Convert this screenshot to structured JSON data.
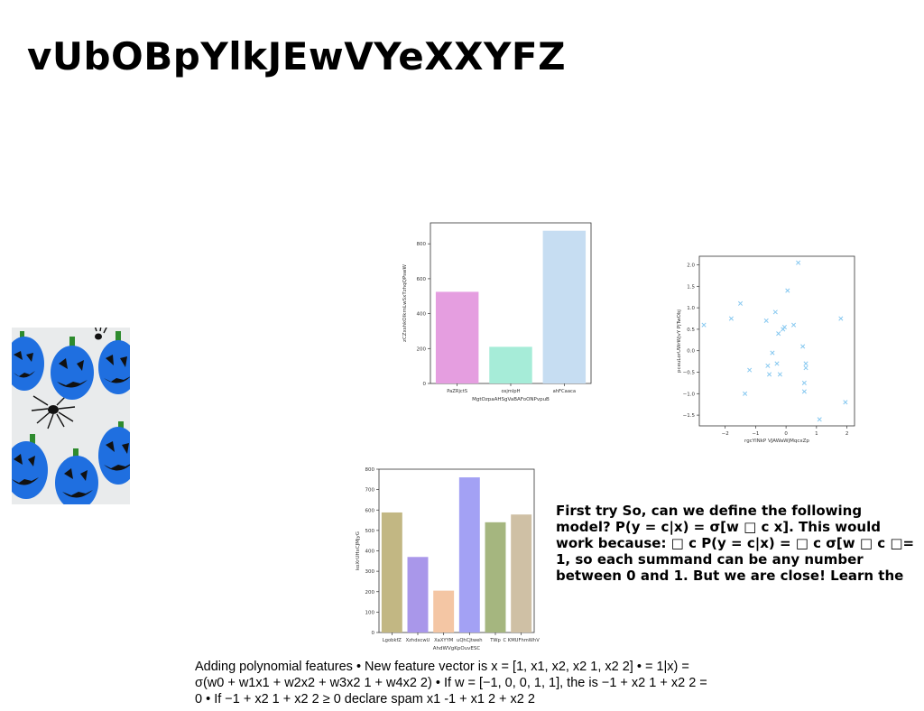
{
  "slide": {
    "title": "vUbOBpYlkJEwVYeXXYFZ",
    "body_text": "First try So, can we define the following model? P(y = c|x) = σ[w □ c x]. This would work because: □ c P(y = c|x) = □ c σ[w □ c □= 1, so each summand can be any number between 0 and 1. But we are close! Learn the",
    "footer_text": "Adding polynomial features • New feature vector is x = [1, x1, x2, x2 1, x2 2] • = 1|x) = σ(w0 + w1x1 + w2x2 + w3x2 1 + w4x2 2) • If w = [−1, 0, 0, 1, 1], the is −1 + x2 1 + x2 2 = 0 • If −1 + x2 1 + x2 2 ≥ 0 declare spam x1 -1 + x1 2 + x2 2"
  },
  "image": {
    "subject": "blue jack-o-lantern cookies with plastic spiders",
    "colors": {
      "cookie": "#1f6fe0",
      "stem": "#2e8b2e",
      "face": "#111111",
      "background": "#e9ebec"
    }
  },
  "chart_data": [
    {
      "type": "bar",
      "categories": [
        "PaZRjctS",
        "osjmlpH",
        "ahFCaaca"
      ],
      "values": [
        525,
        210,
        875
      ],
      "colors": [
        "#e59ee0",
        "#a6ecd8",
        "#c6ddf2"
      ],
      "xlabel": "MgtOzpaAHSgVaBAFoONPvpuB",
      "ylabel": "zCZxshkOIkrnLwSxTzhqQPswW",
      "ylim": [
        0,
        920
      ],
      "yticks": [
        0,
        200,
        400,
        600,
        800
      ],
      "grid": false
    },
    {
      "type": "scatter",
      "marker": "x",
      "color": "#86c8f0",
      "xlabel": "rgcYlNkP VJAWaWjMqcxZp",
      "ylabel": "pceuLorUWrWjvY PjTwObj",
      "xlim": [
        -2.85,
        2.25
      ],
      "ylim": [
        -1.75,
        2.2
      ],
      "xticks": [
        -2,
        -1,
        0,
        1,
        2
      ],
      "yticks": [
        -1.5,
        -1.0,
        -0.5,
        0.0,
        0.5,
        1.0,
        1.5,
        2.0
      ],
      "x": [
        -2.7,
        -1.8,
        -1.5,
        -1.35,
        -1.2,
        -0.65,
        -0.6,
        -0.55,
        -0.45,
        -0.35,
        -0.3,
        -0.25,
        -0.2,
        -0.1,
        -0.05,
        0.05,
        0.25,
        0.4,
        0.55,
        0.6,
        0.6,
        0.65,
        0.65,
        1.1,
        1.8,
        1.95
      ],
      "y": [
        0.6,
        0.75,
        1.1,
        -1.0,
        -0.45,
        0.7,
        -0.35,
        -0.55,
        -0.05,
        0.9,
        -0.3,
        0.4,
        -0.55,
        0.5,
        0.55,
        1.4,
        0.6,
        2.05,
        0.1,
        -0.75,
        -0.95,
        -0.3,
        -0.4,
        -1.6,
        0.75,
        -1.2
      ],
      "grid": false
    },
    {
      "type": "bar",
      "categories": [
        "LgobkfZ",
        "XzhdxcwU",
        "XaXYYM",
        "uQhCJtweh",
        "TWp",
        "C KMUFhmWhV"
      ],
      "values": [
        588,
        370,
        205,
        760,
        540,
        578
      ],
      "colors": [
        "#c2b783",
        "#a997ea",
        "#f4c6a4",
        "#a3a1f4",
        "#a5b67f",
        "#cfc0a5"
      ],
      "xlabel": "AhdWVgKpOuvESC",
      "ylabel": "koXrUHxCJMjyG",
      "ylim": [
        0,
        800
      ],
      "yticks": [
        0,
        100,
        200,
        300,
        400,
        500,
        600,
        700,
        800
      ],
      "grid": false
    }
  ]
}
